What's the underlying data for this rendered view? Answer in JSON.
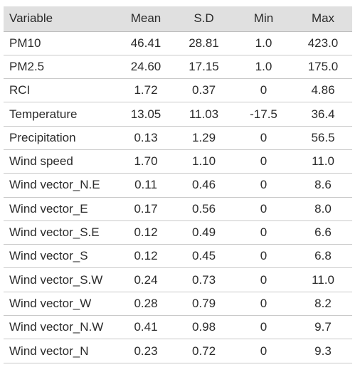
{
  "table": {
    "headers": [
      "Variable",
      "Mean",
      "S.D",
      "Min",
      "Max"
    ],
    "rows": [
      [
        "PM10",
        "46.41",
        "28.81",
        "1.0",
        "423.0"
      ],
      [
        "PM2.5",
        "24.60",
        "17.15",
        "1.0",
        "175.0"
      ],
      [
        "RCI",
        "1.72",
        "0.37",
        "0",
        "4.86"
      ],
      [
        "Temperature",
        "13.05",
        "11.03",
        "-17.5",
        "36.4"
      ],
      [
        "Precipitation",
        "0.13",
        "1.29",
        "0",
        "56.5"
      ],
      [
        "Wind speed",
        "1.70",
        "1.10",
        "0",
        "11.0"
      ],
      [
        "Wind vector_N.E",
        "0.11",
        "0.46",
        "0",
        "8.6"
      ],
      [
        "Wind vector_E",
        "0.17",
        "0.56",
        "0",
        "8.0"
      ],
      [
        "Wind vector_S.E",
        "0.12",
        "0.49",
        "0",
        "6.6"
      ],
      [
        "Wind vector_S",
        "0.12",
        "0.45",
        "0",
        "6.8"
      ],
      [
        "Wind vector_S.W",
        "0.24",
        "0.73",
        "0",
        "11.0"
      ],
      [
        "Wind vector_W",
        "0.28",
        "0.79",
        "0",
        "8.2"
      ],
      [
        "Wind vector_N.W",
        "0.41",
        "0.98",
        "0",
        "9.7"
      ],
      [
        "Wind vector_N",
        "0.23",
        "0.72",
        "0",
        "9.3"
      ]
    ]
  }
}
